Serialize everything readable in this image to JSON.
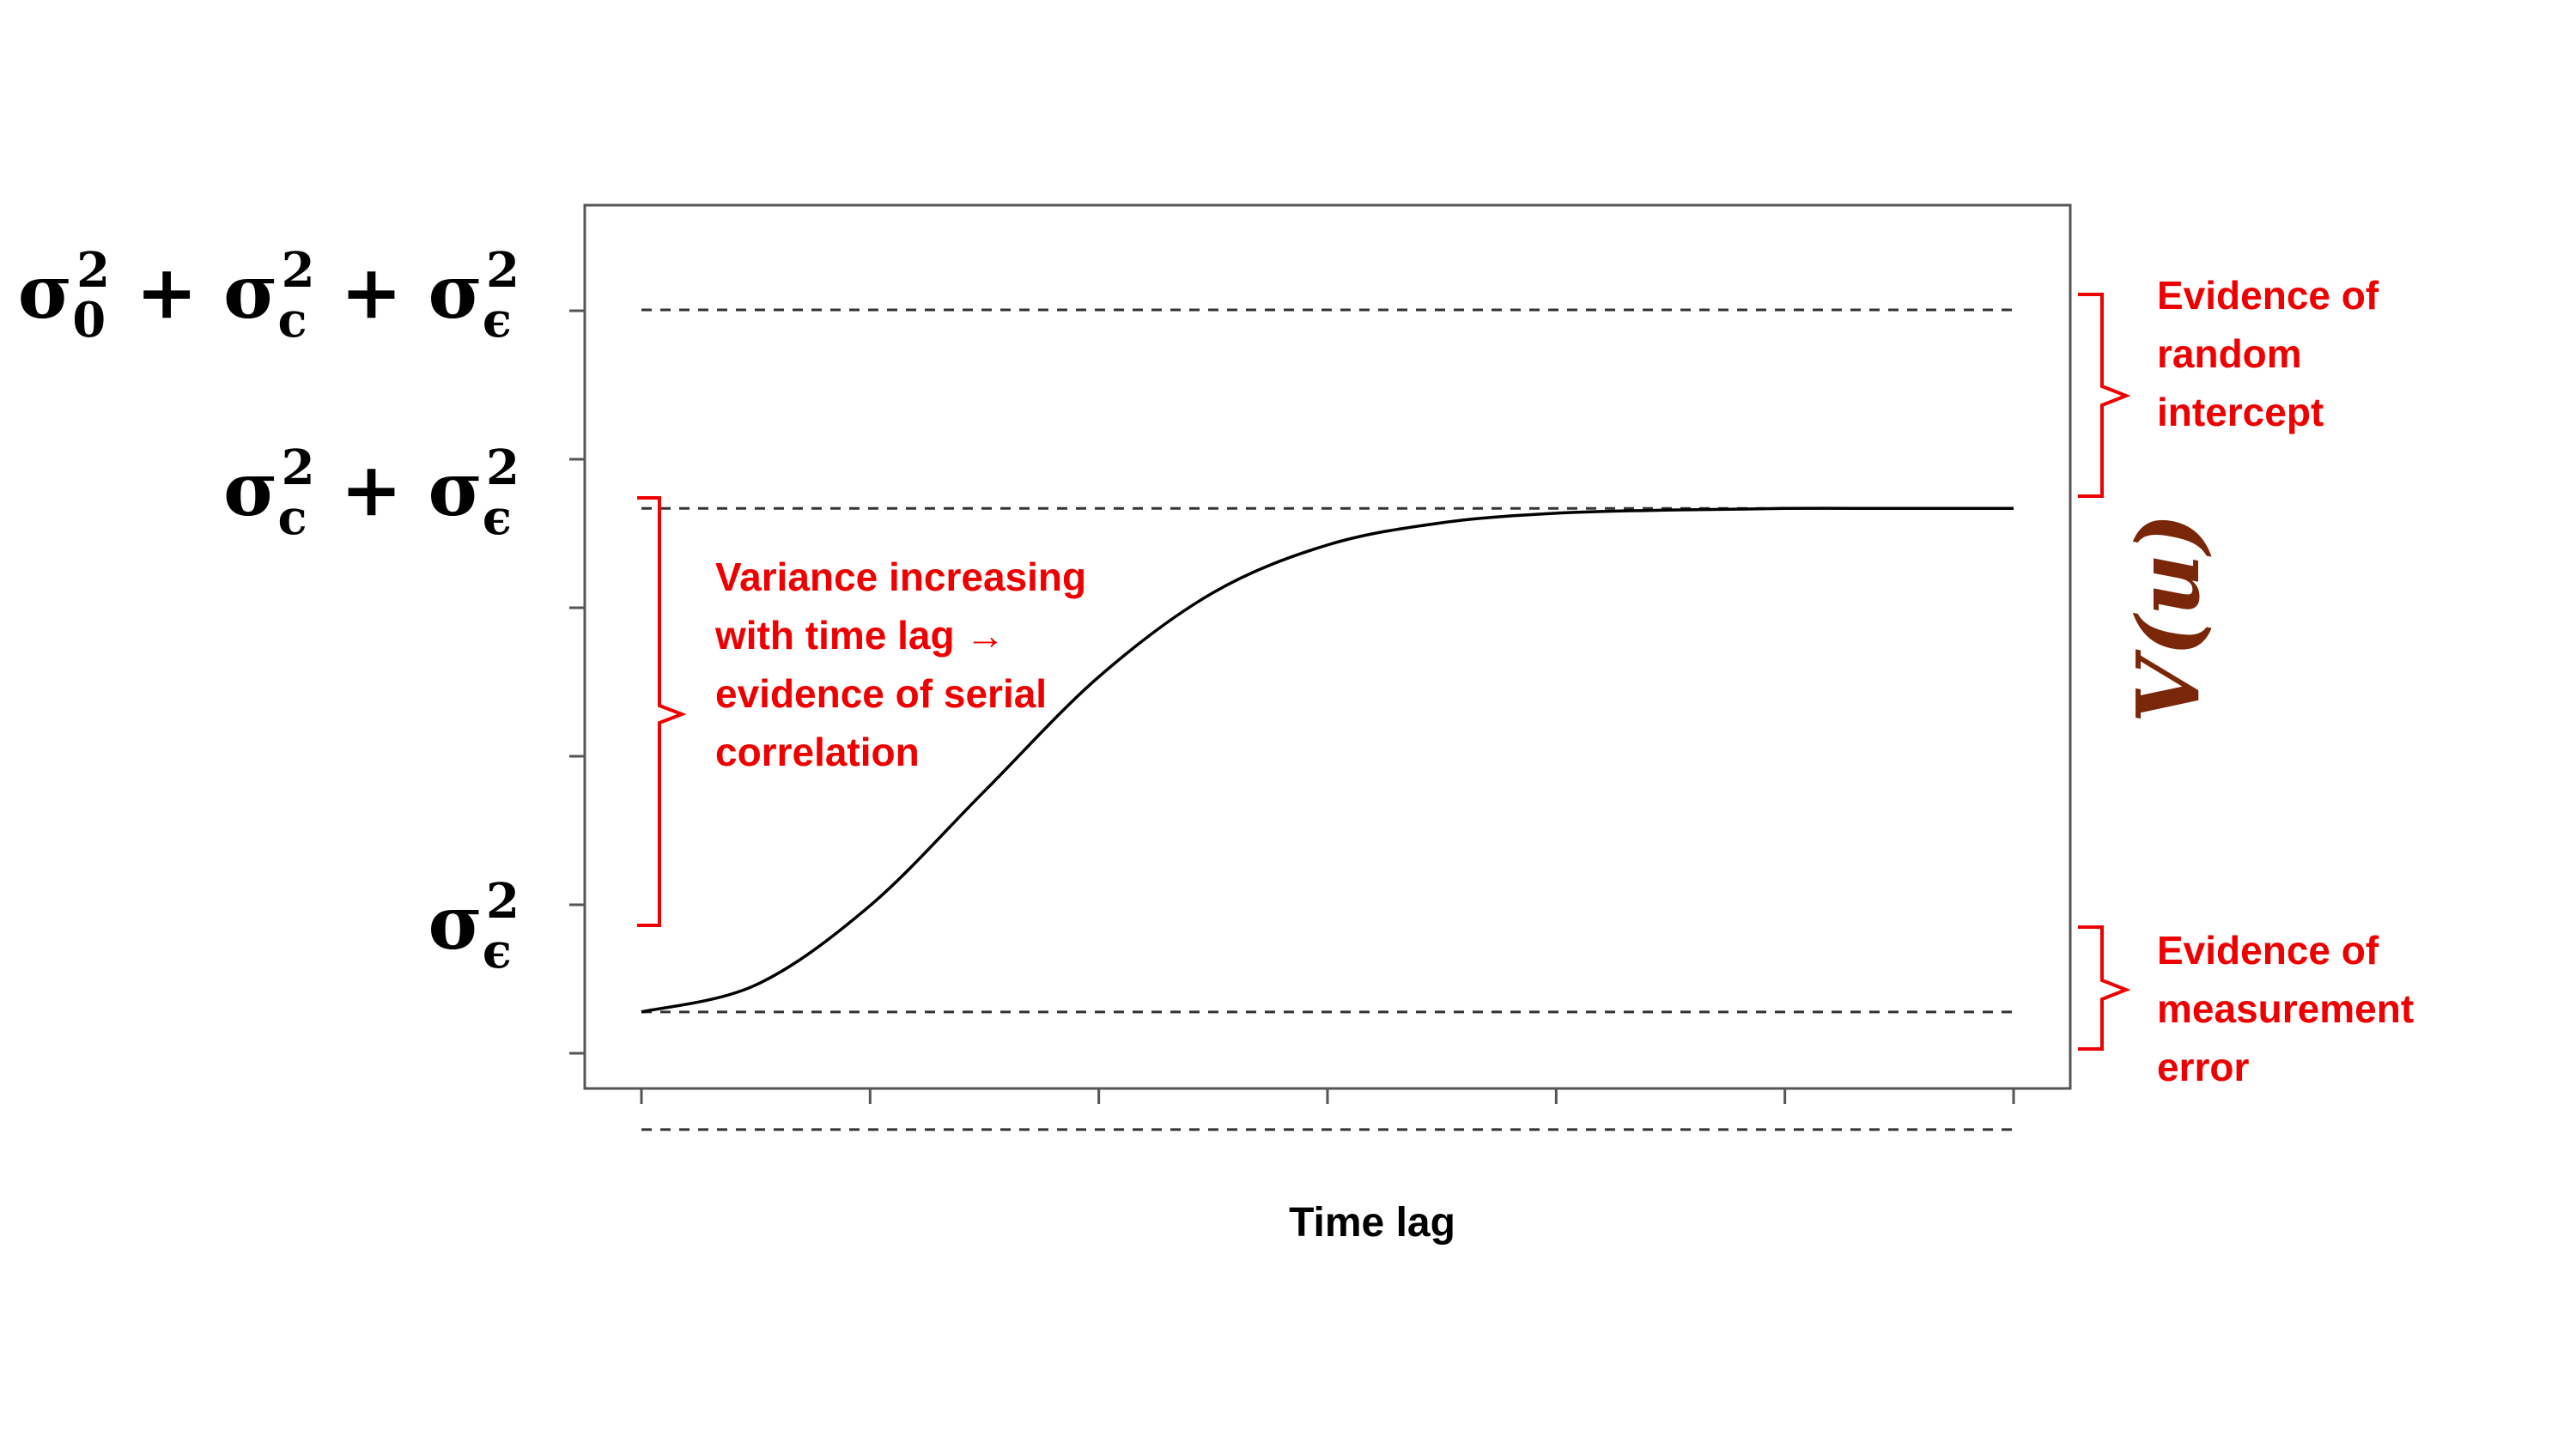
{
  "chart_data": {
    "type": "line",
    "title": "",
    "xlabel": "Time lag",
    "ylabel": "V(u)",
    "xlim": [
      0,
      6
    ],
    "ylim": [
      -0.3,
      5.6
    ],
    "x_ticks": [
      0,
      1,
      2,
      3,
      4,
      5,
      6
    ],
    "y_ticks": [
      0,
      1,
      2,
      3,
      4,
      5
    ],
    "grid": false,
    "series": [
      {
        "name": "",
        "style": "solid",
        "color": "#000000",
        "x": [
          0,
          0.5,
          1,
          1.5,
          2,
          2.5,
          3,
          3.5,
          4,
          4.5,
          5,
          5.5,
          6
        ],
        "y": [
          0.26,
          0.43,
          0.93,
          1.65,
          2.37,
          2.9,
          3.2,
          3.34,
          3.4,
          3.42,
          3.43,
          3.43,
          3.43
        ]
      }
    ],
    "reference_lines": [
      {
        "y": 4.68,
        "style": "dashed",
        "label": "σ₀² + σ_c² + σ_ϵ²"
      },
      {
        "y": 3.43,
        "style": "dashed",
        "label": "σ_c² + σ_ϵ²"
      },
      {
        "y": 0.26,
        "style": "dashed",
        "label": "σ_ϵ²"
      },
      {
        "y": -0.48,
        "style": "dashed",
        "label": ""
      }
    ],
    "annotations": [
      {
        "lines": [
          "Evidence of",
          "random",
          "intercept"
        ],
        "color": "#ee0000"
      },
      {
        "lines": [
          "Variance increasing",
          "with time lag →",
          "evidence of serial",
          "correlation"
        ],
        "color": "#ee0000"
      },
      {
        "lines": [
          "Evidence of",
          "measurement",
          "error"
        ],
        "color": "#ee0000"
      }
    ]
  },
  "colors": {
    "annotation": "#ee0000",
    "vu_label": "#7a2608",
    "axes": "#555555"
  }
}
